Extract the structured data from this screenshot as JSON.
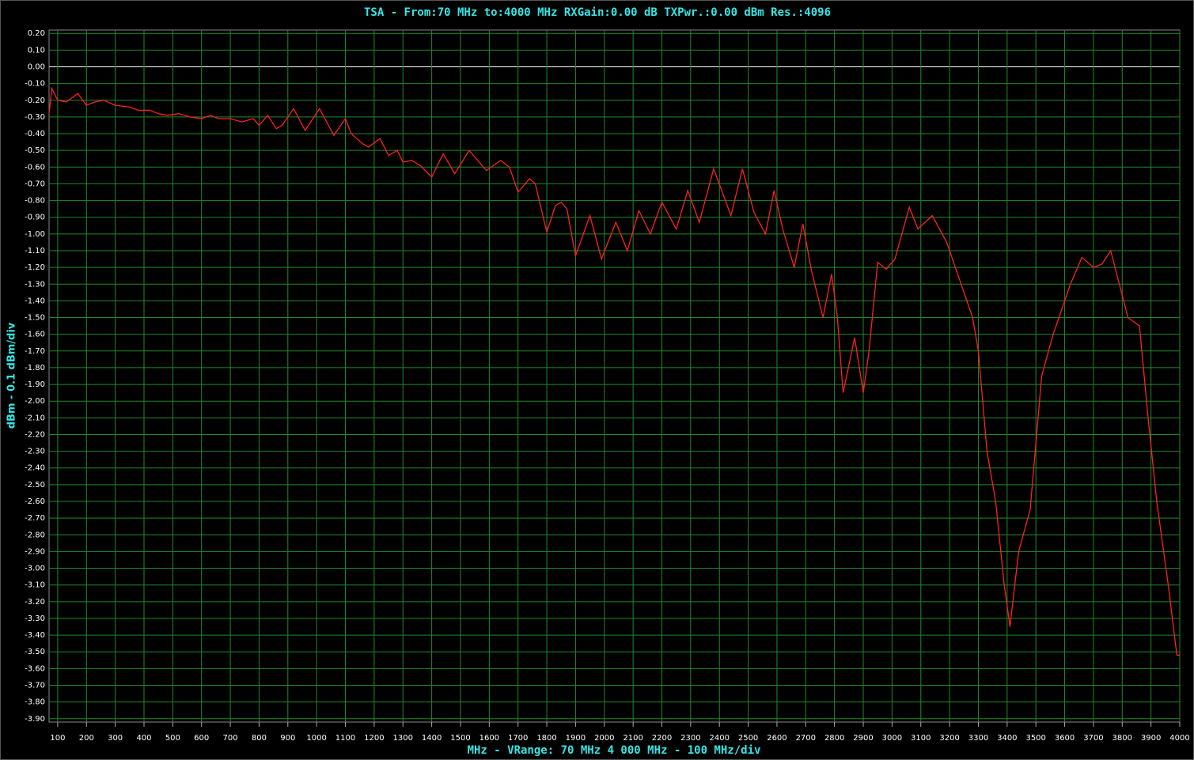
{
  "chart_data": {
    "type": "line",
    "title": "TSA - From:70 MHz to:4000 MHz RXGain:0.00 dB TXPwr.:0.00 dBm Res.:4096",
    "x_label": "MHz - VRange: 70 MHz 4 000 MHz - 100 MHz/div",
    "y_label": "dBm - 0.1 dBm/div",
    "x": [
      70,
      80,
      100,
      130,
      170,
      200,
      230,
      260,
      300,
      350,
      380,
      420,
      450,
      480,
      520,
      560,
      600,
      630,
      660,
      700,
      740,
      780,
      800,
      830,
      860,
      880,
      920,
      960,
      1010,
      1060,
      1100,
      1120,
      1160,
      1180,
      1220,
      1250,
      1280,
      1300,
      1330,
      1360,
      1400,
      1440,
      1480,
      1530,
      1590,
      1640,
      1670,
      1700,
      1740,
      1760,
      1800,
      1830,
      1850,
      1870,
      1900,
      1950,
      1990,
      2040,
      2080,
      2120,
      2160,
      2200,
      2250,
      2290,
      2330,
      2380,
      2440,
      2480,
      2520,
      2560,
      2590,
      2620,
      2660,
      2690,
      2720,
      2760,
      2790,
      2810,
      2830,
      2870,
      2900,
      2920,
      2950,
      2980,
      3010,
      3060,
      3090,
      3140,
      3190,
      3230,
      3280,
      3300,
      3330,
      3360,
      3390,
      3410,
      3440,
      3480,
      3520,
      3560,
      3620,
      3660,
      3700,
      3730,
      3760,
      3790,
      3820,
      3860,
      3890,
      3920,
      3960,
      3990,
      4000
    ],
    "series": [
      {
        "color": "#ff2020",
        "values": [
          -0.28,
          -0.13,
          -0.2,
          -0.21,
          -0.16,
          -0.23,
          -0.21,
          -0.2,
          -0.23,
          -0.24,
          -0.26,
          -0.26,
          -0.28,
          -0.29,
          -0.28,
          -0.3,
          -0.31,
          -0.29,
          -0.31,
          -0.31,
          -0.33,
          -0.31,
          -0.35,
          -0.29,
          -0.37,
          -0.35,
          -0.25,
          -0.38,
          -0.25,
          -0.41,
          -0.31,
          -0.4,
          -0.46,
          -0.48,
          -0.43,
          -0.53,
          -0.5,
          -0.57,
          -0.56,
          -0.59,
          -0.66,
          -0.52,
          -0.64,
          -0.5,
          -0.62,
          -0.56,
          -0.6,
          -0.75,
          -0.67,
          -0.7,
          -0.99,
          -0.83,
          -0.81,
          -0.85,
          -1.13,
          -0.89,
          -1.15,
          -0.93,
          -1.1,
          -0.86,
          -1.0,
          -0.81,
          -0.97,
          -0.74,
          -0.93,
          -0.61,
          -0.89,
          -0.61,
          -0.87,
          -1.0,
          -0.74,
          -0.97,
          -1.2,
          -0.94,
          -1.22,
          -1.5,
          -1.24,
          -1.5,
          -1.95,
          -1.62,
          -1.95,
          -1.7,
          -1.17,
          -1.21,
          -1.15,
          -0.84,
          -0.97,
          -0.89,
          -1.05,
          -1.25,
          -1.5,
          -1.7,
          -2.3,
          -2.6,
          -3.1,
          -3.35,
          -2.9,
          -2.65,
          -1.85,
          -1.6,
          -1.3,
          -1.14,
          -1.2,
          -1.18,
          -1.1,
          -1.3,
          -1.5,
          -1.55,
          -2.1,
          -2.6,
          -3.1,
          -3.52,
          -3.52
        ]
      }
    ],
    "xlim": [
      70,
      4000
    ],
    "xticks": [
      100,
      200,
      300,
      400,
      500,
      600,
      700,
      800,
      900,
      1000,
      1100,
      1200,
      1300,
      1400,
      1500,
      1600,
      1700,
      1800,
      1900,
      2000,
      2100,
      2200,
      2300,
      2400,
      2500,
      2600,
      2700,
      2800,
      2900,
      3000,
      3100,
      3200,
      3300,
      3400,
      3500,
      3600,
      3700,
      3800,
      3900,
      4000
    ],
    "ylim": [
      -3.92,
      0.22
    ],
    "yticks": [
      {
        "value": 0.2,
        "label": "0.20"
      },
      {
        "value": 0.1,
        "label": "0.10"
      },
      {
        "value": 0,
        "label": "0.00"
      },
      {
        "value": -0.1,
        "label": "-0.10"
      },
      {
        "value": -0.2,
        "label": "-0.20"
      },
      {
        "value": -0.3,
        "label": "-0.30"
      },
      {
        "value": -0.4,
        "label": "-0.40"
      },
      {
        "value": -0.5,
        "label": "-0.50"
      },
      {
        "value": -0.6,
        "label": "-0.60"
      },
      {
        "value": -0.7,
        "label": "-0.70"
      },
      {
        "value": -0.8,
        "label": "-0.80"
      },
      {
        "value": -0.9,
        "label": "-0.90"
      },
      {
        "value": -1.0,
        "label": "-1.00"
      },
      {
        "value": -1.1,
        "label": "-1.10"
      },
      {
        "value": -1.2,
        "label": "-1.20"
      },
      {
        "value": -1.3,
        "label": "-1.30"
      },
      {
        "value": -1.4,
        "label": "-1.40"
      },
      {
        "value": -1.5,
        "label": "-1.50"
      },
      {
        "value": -1.6,
        "label": "-1.60"
      },
      {
        "value": -1.7,
        "label": "-1.70"
      },
      {
        "value": -1.8,
        "label": "-1.80"
      },
      {
        "value": -1.9,
        "label": "-1.90"
      },
      {
        "value": -2.0,
        "label": "-2.00"
      },
      {
        "value": -2.1,
        "label": "-2.10"
      },
      {
        "value": -2.2,
        "label": "-2.20"
      },
      {
        "value": -2.3,
        "label": "-2.30"
      },
      {
        "value": -2.4,
        "label": "-2.40"
      },
      {
        "value": -2.5,
        "label": "-2.50"
      },
      {
        "value": -2.6,
        "label": "-2.60"
      },
      {
        "value": -2.7,
        "label": "-2.70"
      },
      {
        "value": -2.8,
        "label": "-2.80"
      },
      {
        "value": -2.9,
        "label": "-2.90"
      },
      {
        "value": -3.0,
        "label": "-3.00"
      },
      {
        "value": -3.1,
        "label": "-3.10"
      },
      {
        "value": -3.2,
        "label": "-3.20"
      },
      {
        "value": -3.3,
        "label": "-3.30"
      },
      {
        "value": -3.4,
        "label": "-3.40"
      },
      {
        "value": -3.5,
        "label": "-3.50"
      },
      {
        "value": -3.6,
        "label": "-3.60"
      },
      {
        "value": -3.7,
        "label": "-3.70"
      },
      {
        "value": -3.8,
        "label": "-3.80"
      },
      {
        "value": -3.9,
        "label": "-3.90"
      }
    ],
    "grid": true,
    "grid_color": "#1f8a2a",
    "zero_line_color": "#ffffff"
  }
}
